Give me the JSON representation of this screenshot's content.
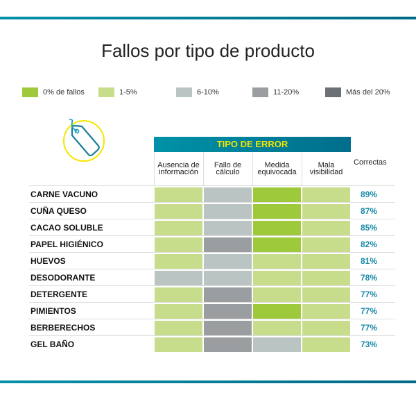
{
  "title": "Fallos por tipo de producto",
  "legend": [
    {
      "label": "0% de fallos",
      "color": "#9dc93a"
    },
    {
      "label": "1-5%",
      "color": "#c8dd8c"
    },
    {
      "label": "6-10%",
      "color": "#b9c4c3"
    },
    {
      "label": "11-20%",
      "color": "#9b9ea1"
    },
    {
      "label": "Más del 20%",
      "color": "#6d7074"
    }
  ],
  "chart_data": {
    "type": "heatmap",
    "title": "Fallos por tipo de producto",
    "group_header": "TIPO DE ERROR",
    "columns": [
      "Ausencia de información",
      "Fallo de cálculo",
      "Medida equivocada",
      "Mala visibilidad"
    ],
    "extra_column": "Correctas",
    "levels": [
      "0% de fallos",
      "1-5%",
      "6-10%",
      "11-20%",
      "Más del 20%"
    ],
    "rows": [
      {
        "product": "CARNE VACUNO",
        "values": [
          "1-5%",
          "6-10%",
          "0% de fallos",
          "1-5%"
        ],
        "correctas": "89%"
      },
      {
        "product": "CUÑA QUESO",
        "values": [
          "1-5%",
          "6-10%",
          "0% de fallos",
          "1-5%"
        ],
        "correctas": "87%"
      },
      {
        "product": "CACAO SOLUBLE",
        "values": [
          "1-5%",
          "6-10%",
          "0% de fallos",
          "1-5%"
        ],
        "correctas": "85%"
      },
      {
        "product": "PAPEL HIGIÉNICO",
        "values": [
          "1-5%",
          "11-20%",
          "0% de fallos",
          "1-5%"
        ],
        "correctas": "82%"
      },
      {
        "product": "HUEVOS",
        "values": [
          "1-5%",
          "6-10%",
          "1-5%",
          "1-5%"
        ],
        "correctas": "81%"
      },
      {
        "product": "DESODORANTE",
        "values": [
          "6-10%",
          "6-10%",
          "1-5%",
          "1-5%"
        ],
        "correctas": "78%"
      },
      {
        "product": "DETERGENTE",
        "values": [
          "1-5%",
          "11-20%",
          "1-5%",
          "1-5%"
        ],
        "correctas": "77%"
      },
      {
        "product": "PIMIENTOS",
        "values": [
          "1-5%",
          "11-20%",
          "0% de fallos",
          "1-5%"
        ],
        "correctas": "77%"
      },
      {
        "product": "BERBERECHOS",
        "values": [
          "1-5%",
          "11-20%",
          "1-5%",
          "1-5%"
        ],
        "correctas": "77%"
      },
      {
        "product": "GEL BAÑO",
        "values": [
          "1-5%",
          "11-20%",
          "6-10%",
          "1-5%"
        ],
        "correctas": "73%"
      }
    ]
  }
}
